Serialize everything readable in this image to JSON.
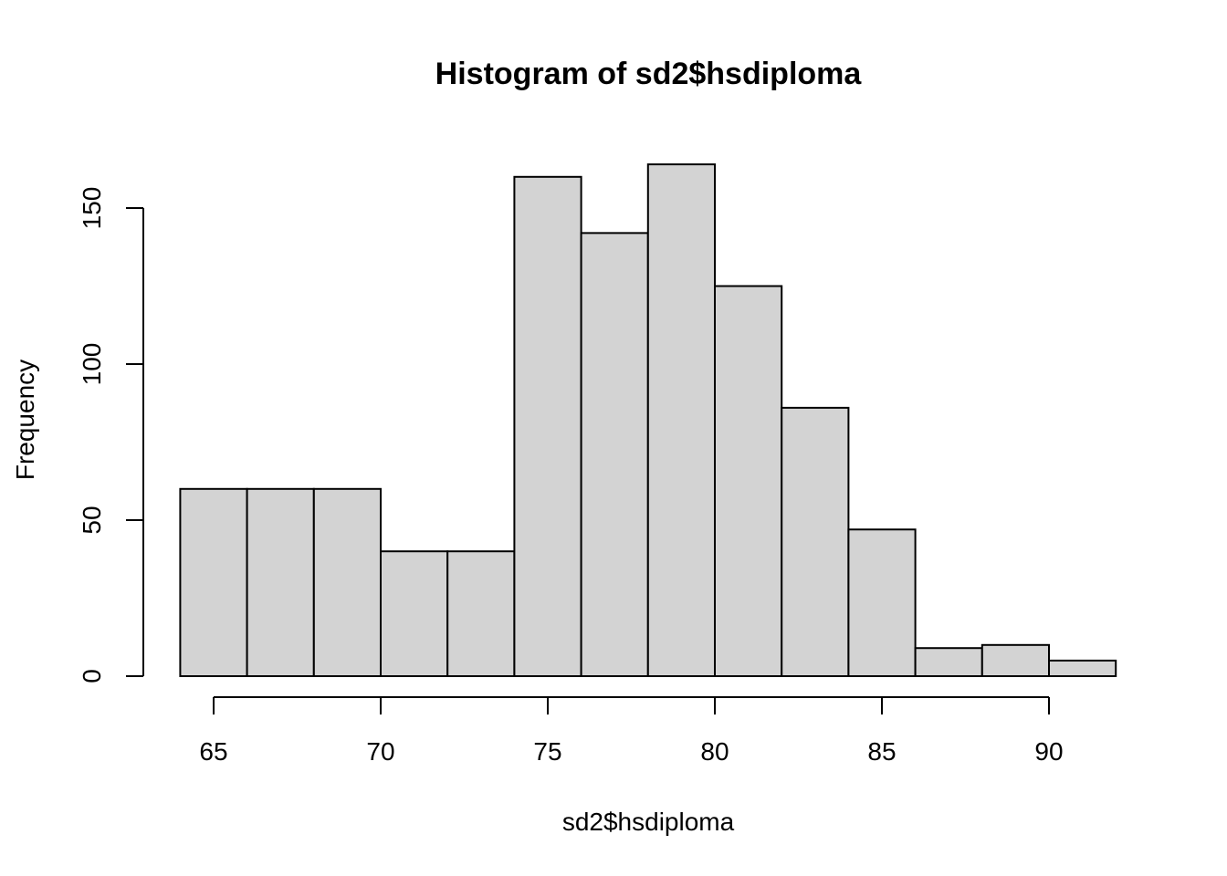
{
  "chart_data": {
    "type": "bar",
    "title": "Histogram of sd2$hsdiploma",
    "xlabel": "sd2$hsdiploma",
    "ylabel": "Frequency",
    "bins": [
      {
        "start": 64,
        "end": 66,
        "count": 60
      },
      {
        "start": 66,
        "end": 68,
        "count": 60
      },
      {
        "start": 68,
        "end": 70,
        "count": 60
      },
      {
        "start": 70,
        "end": 72,
        "count": 40
      },
      {
        "start": 72,
        "end": 74,
        "count": 40
      },
      {
        "start": 74,
        "end": 76,
        "count": 160
      },
      {
        "start": 76,
        "end": 78,
        "count": 142
      },
      {
        "start": 78,
        "end": 80,
        "count": 164
      },
      {
        "start": 80,
        "end": 82,
        "count": 125
      },
      {
        "start": 82,
        "end": 84,
        "count": 86
      },
      {
        "start": 84,
        "end": 86,
        "count": 47
      },
      {
        "start": 86,
        "end": 88,
        "count": 9
      },
      {
        "start": 88,
        "end": 90,
        "count": 10
      },
      {
        "start": 90,
        "end": 92,
        "count": 5
      }
    ],
    "x_ticks": [
      65,
      70,
      75,
      80,
      85,
      90
    ],
    "y_ticks": [
      0,
      50,
      100,
      150
    ],
    "xlim": [
      64,
      92
    ],
    "ylim": [
      0,
      164
    ],
    "bar_fill": "#d3d3d3",
    "bar_stroke": "#000000",
    "grid": false
  }
}
